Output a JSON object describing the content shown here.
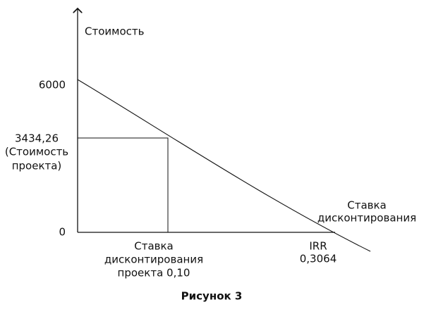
{
  "y_axis_label": "Стоимость",
  "y_top_label": "6000",
  "y_project_label": [
    "3434,26",
    "(Стоимость",
    "проекта)"
  ],
  "origin_label": "0",
  "x_axis_label": [
    "Ставка",
    "дисконтирования"
  ],
  "x_project_label": [
    "Ставка",
    "дисконтирования",
    "проекта 0,10"
  ],
  "x_irr_label": [
    "IRR",
    "0,3064"
  ],
  "caption": "Рисунок 3"
}
